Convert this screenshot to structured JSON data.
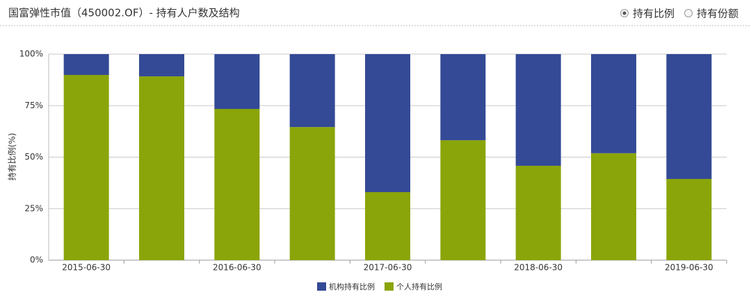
{
  "chart_data": {
    "type": "stacked_bar",
    "title": "国富弹性市值（450002.OF）- 持有人户数及结构",
    "ylabel": "持有比例(%)",
    "categories": [
      "2015-06-30",
      null,
      "2016-06-30",
      null,
      "2017-06-30",
      null,
      "2018-06-30",
      null,
      "2019-06-30"
    ],
    "series": [
      {
        "name": "机构持有比例",
        "color": "#344a96",
        "values": [
          10.1,
          10.8,
          26.6,
          35.4,
          67.0,
          41.8,
          54.2,
          48.1,
          60.6
        ]
      },
      {
        "name": "个人持有比例",
        "color": "#8aa50a",
        "values": [
          89.9,
          89.2,
          73.4,
          64.6,
          33.0,
          58.2,
          45.8,
          51.9,
          39.4
        ]
      }
    ],
    "ylim": [
      0,
      100
    ],
    "yticks": [
      {
        "value": 0,
        "label": "0%"
      },
      {
        "value": 25,
        "label": "25%"
      },
      {
        "value": 50,
        "label": "50%"
      },
      {
        "value": 75,
        "label": "75%"
      },
      {
        "value": 100,
        "label": "100%"
      }
    ],
    "grid": true,
    "legend": "bottom"
  },
  "controls": [
    {
      "label": "持有比例",
      "selected": true
    },
    {
      "label": "持有份额",
      "selected": false
    }
  ]
}
